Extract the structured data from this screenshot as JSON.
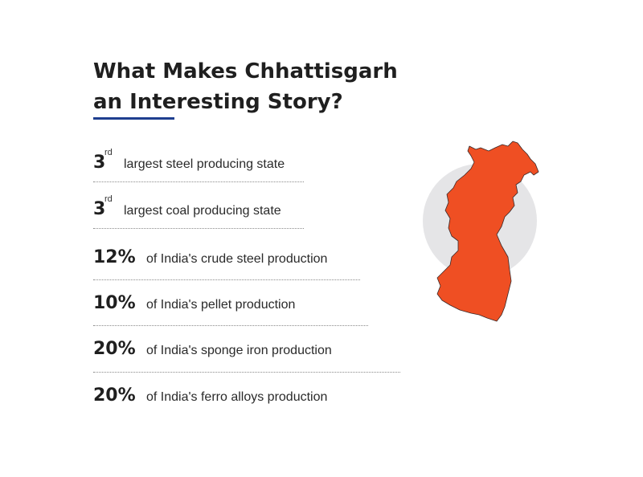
{
  "title": {
    "line1": "What Makes Chhattisgarh",
    "line2": "an Interesting Story?"
  },
  "stats": [
    {
      "value": "3",
      "superscript": "rd",
      "description": "largest steel producing state"
    },
    {
      "value": "3",
      "superscript": "rd",
      "description": "largest coal producing state"
    },
    {
      "value": "12%",
      "superscript": "",
      "description": "of India's crude steel production"
    },
    {
      "value": "10%",
      "superscript": "",
      "description": "of India's pellet production"
    },
    {
      "value": "20%",
      "superscript": "",
      "description": "of India's sponge iron production"
    },
    {
      "value": "20%",
      "superscript": "",
      "description": "of India's ferro alloys production"
    }
  ],
  "map": {
    "icon": "chhattisgarh-map-icon",
    "fill_color": "#ef4f23",
    "circle_color": "#e5e5e7",
    "accent_color": "#1f3f8f"
  }
}
